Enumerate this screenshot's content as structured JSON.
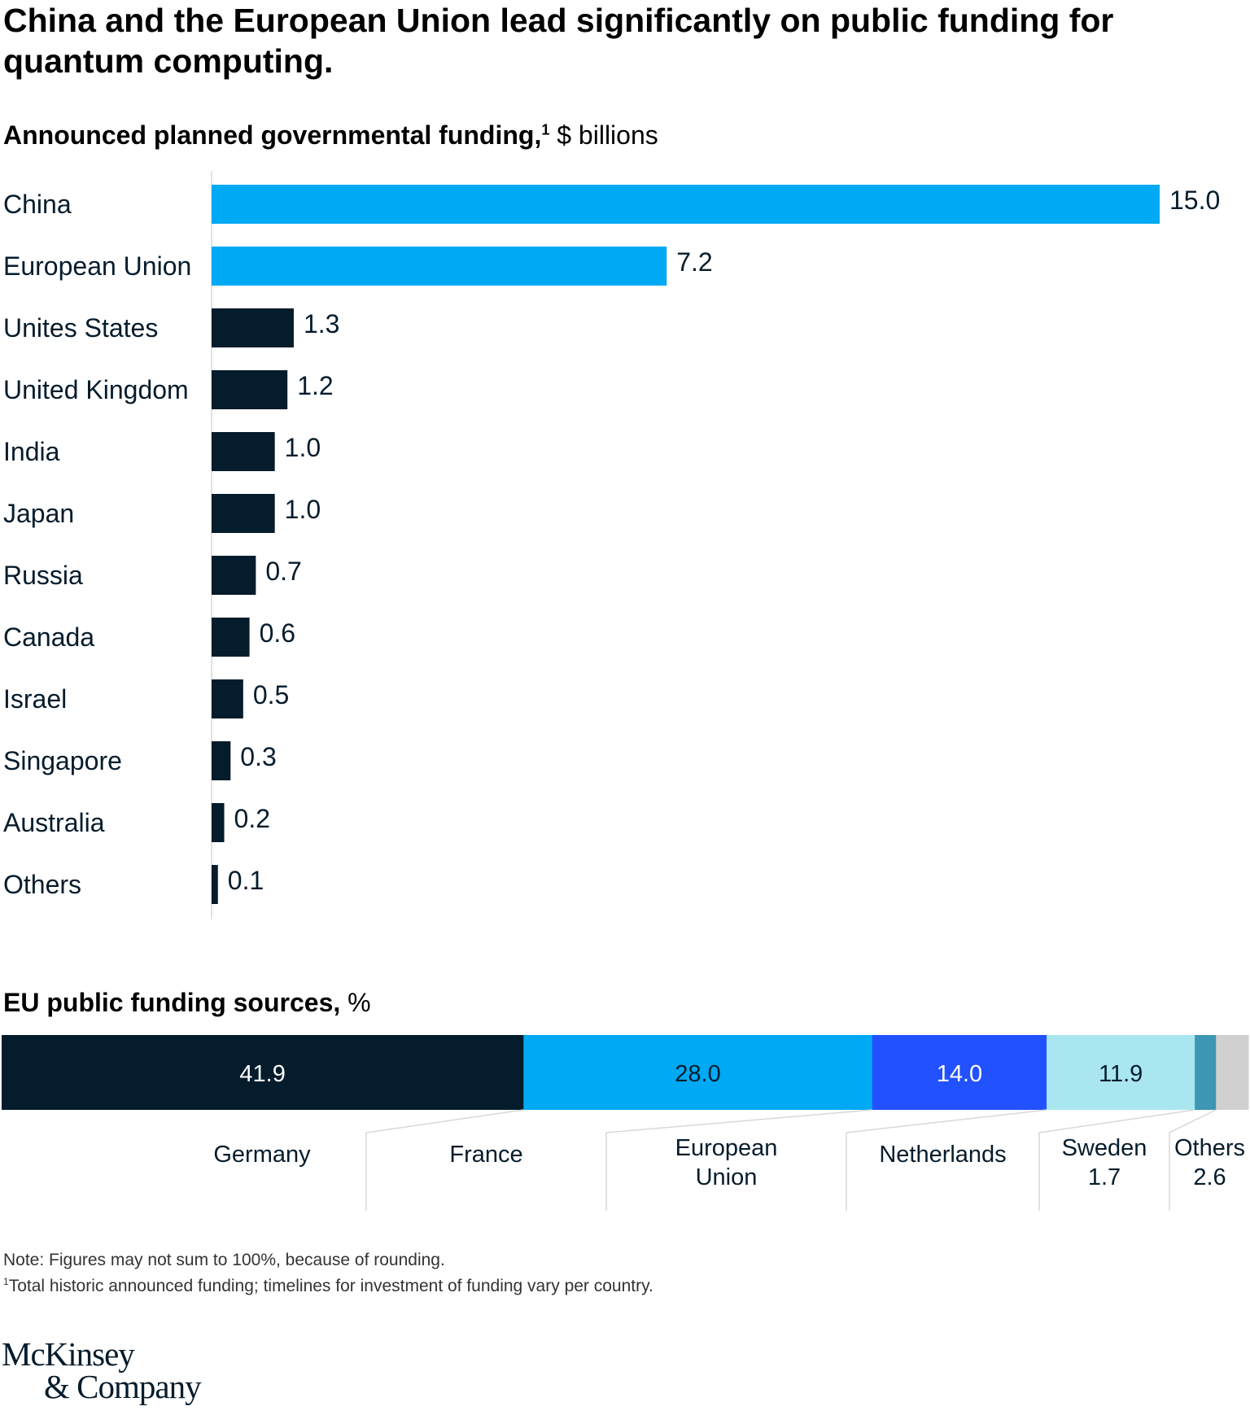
{
  "title": "China and the European Union lead significantly on public funding for quantum computing.",
  "subtitle": {
    "bold": "Announced planned governmental funding,",
    "footnote_mark": "1",
    "unit": " $ billions"
  },
  "eu_subtitle": {
    "bold": "EU public funding sources,",
    "unit": " %"
  },
  "colors": {
    "highlight": "#00a9f4",
    "dark": "#051c2c",
    "blue": "#2251ff",
    "light_blue": "#aae6f0",
    "teal": "#3c96b4",
    "grey": "#d0d0d0"
  },
  "chart_data": [
    {
      "type": "bar",
      "orientation": "horizontal",
      "categories": [
        "China",
        "European Union",
        "Unites States",
        "United Kingdom",
        "India",
        "Japan",
        "Russia",
        "Canada",
        "Israel",
        "Singapore",
        "Australia",
        "Others"
      ],
      "values": [
        15.0,
        7.2,
        1.3,
        1.2,
        1.0,
        1.0,
        0.7,
        0.6,
        0.5,
        0.3,
        0.2,
        0.1
      ],
      "value_labels": [
        "15.0",
        "7.2",
        "1.3",
        "1.2",
        "1.0",
        "1.0",
        "0.7",
        "0.6",
        "0.5",
        "0.3",
        "0.2",
        "0.1"
      ],
      "highlighted": [
        true,
        true,
        false,
        false,
        false,
        false,
        false,
        false,
        false,
        false,
        false,
        false
      ],
      "xlim": [
        0,
        15
      ],
      "grid": false
    },
    {
      "type": "bar",
      "orientation": "stacked-100",
      "segments": [
        {
          "name": "Germany",
          "value": 41.9,
          "label": "41.9",
          "color": "#051c2c",
          "text_color": "#ffffff"
        },
        {
          "name": "France",
          "value": 28.0,
          "label": "28.0",
          "color": "#00a9f4",
          "text_color": "#051c2c"
        },
        {
          "name": "European Union",
          "value": 14.0,
          "label": "14.0",
          "color": "#2251ff",
          "text_color": "#ffffff"
        },
        {
          "name": "Netherlands",
          "value": 11.9,
          "label": "11.9",
          "color": "#aae6f0",
          "text_color": "#051c2c"
        },
        {
          "name": "Sweden",
          "value": 1.7,
          "label": "1.7",
          "color": "#3c96b4",
          "text_color": "#051c2c"
        },
        {
          "name": "Others",
          "value": 2.6,
          "label": "2.6",
          "color": "#d0d0d0",
          "text_color": "#051c2c"
        }
      ],
      "category_labels": [
        {
          "lines": [
            "Germany"
          ]
        },
        {
          "lines": [
            "France"
          ]
        },
        {
          "lines": [
            "European",
            "Union"
          ]
        },
        {
          "lines": [
            "Netherlands"
          ]
        },
        {
          "lines": [
            "Sweden",
            "1.7"
          ]
        },
        {
          "lines": [
            "Others",
            "2.6"
          ]
        }
      ]
    }
  ],
  "notes": {
    "note": "Note: Figures may not sum to 100%, because of rounding.",
    "footnote_mark": "1",
    "footnote": "Total historic announced funding; timelines for investment of funding vary per country."
  },
  "logo": {
    "line1": "McKinsey",
    "line2": "& Company"
  }
}
